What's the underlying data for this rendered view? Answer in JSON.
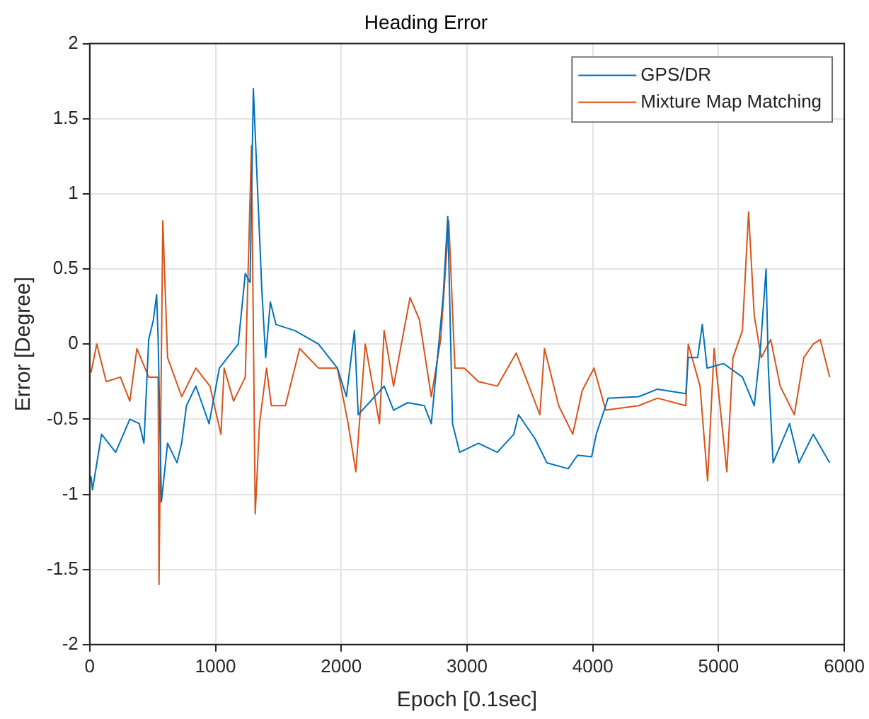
{
  "chart_data": {
    "type": "line",
    "title": "Heading Error",
    "xlabel": "Epoch [0.1sec]",
    "ylabel": "Error [Degree]",
    "xlim": [
      0,
      6000
    ],
    "xticks": [
      0,
      1000,
      2000,
      3000,
      4000,
      5000,
      6000
    ],
    "ylim": [
      -2,
      2
    ],
    "yticks": [
      -2,
      -1.5,
      -1,
      -0.5,
      0,
      0.5,
      1,
      1.5,
      2
    ],
    "grid": true,
    "legend": "top right",
    "marker": "none",
    "line_style": "solid",
    "series": [
      {
        "name": "GPS/DR",
        "color": "#0072bd",
        "x": [
          10,
          22,
          94,
          206,
          319,
          394,
          431,
          469,
          506,
          532,
          544,
          570,
          619,
          694,
          731,
          769,
          844,
          949,
          1031,
          1181,
          1237,
          1275,
          1301,
          1331,
          1369,
          1399,
          1436,
          1481,
          1631,
          1819,
          1969,
          2041,
          2105,
          2135,
          2266,
          2341,
          2416,
          2529,
          2660,
          2716,
          2810,
          2847,
          2885,
          2941,
          3091,
          3241,
          3372,
          3410,
          3541,
          3635,
          3804,
          3879,
          3991,
          4028,
          4103,
          4121,
          4365,
          4515,
          4740,
          4759,
          4834,
          4871,
          4909,
          5040,
          5190,
          5284,
          5333,
          5378,
          5396,
          5434,
          5565,
          5640,
          5753,
          5884
        ],
        "values": [
          -0.88,
          -0.97,
          -0.6,
          -0.72,
          -0.5,
          -0.53,
          -0.66,
          0.03,
          0.16,
          0.33,
          0.03,
          -1.05,
          -0.66,
          -0.79,
          -0.66,
          -0.41,
          -0.28,
          -0.53,
          -0.16,
          0,
          0.47,
          0.41,
          1.7,
          1.1,
          0.35,
          -0.09,
          0.28,
          0.13,
          0.09,
          0,
          -0.16,
          -0.35,
          0.09,
          -0.47,
          -0.35,
          -0.28,
          -0.44,
          -0.39,
          -0.41,
          -0.53,
          0.31,
          0.85,
          -0.53,
          -0.72,
          -0.66,
          -0.72,
          -0.6,
          -0.47,
          -0.63,
          -0.79,
          -0.83,
          -0.74,
          -0.75,
          -0.6,
          -0.41,
          -0.36,
          -0.35,
          -0.3,
          -0.33,
          -0.09,
          -0.09,
          0.13,
          -0.16,
          -0.13,
          -0.22,
          -0.41,
          -0.03,
          0.5,
          -0.16,
          -0.79,
          -0.53,
          -0.79,
          -0.6,
          -0.79
        ]
      },
      {
        "name": "Mixture Map Matching",
        "color": "#d95319",
        "x": [
          10,
          56,
          131,
          244,
          319,
          375,
          469,
          544,
          551,
          581,
          619,
          731,
          844,
          956,
          1043,
          1069,
          1144,
          1237,
          1286,
          1316,
          1350,
          1406,
          1444,
          1556,
          1669,
          1819,
          1969,
          2055,
          2116,
          2191,
          2304,
          2341,
          2416,
          2547,
          2622,
          2716,
          2791,
          2855,
          2904,
          2979,
          3091,
          3241,
          3391,
          3466,
          3579,
          3616,
          3729,
          3841,
          3916,
          4010,
          4103,
          4365,
          4515,
          4740,
          4759,
          4853,
          4913,
          4965,
          5066,
          5115,
          5190,
          5239,
          5284,
          5340,
          5415,
          5490,
          5603,
          5678,
          5753,
          5809,
          5884
        ],
        "values": [
          -0.19,
          0,
          -0.25,
          -0.22,
          -0.38,
          -0.03,
          -0.22,
          -0.22,
          -1.6,
          0.82,
          -0.09,
          -0.35,
          -0.16,
          -0.28,
          -0.6,
          -0.16,
          -0.38,
          -0.22,
          1.32,
          -1.13,
          -0.53,
          -0.16,
          -0.41,
          -0.41,
          -0.03,
          -0.16,
          -0.16,
          -0.53,
          -0.85,
          0,
          -0.53,
          0.09,
          -0.28,
          0.31,
          0.16,
          -0.35,
          0.03,
          0.82,
          -0.16,
          -0.16,
          -0.25,
          -0.28,
          -0.06,
          -0.22,
          -0.47,
          -0.03,
          -0.41,
          -0.6,
          -0.31,
          -0.16,
          -0.44,
          -0.41,
          -0.36,
          -0.41,
          0,
          -0.28,
          -0.91,
          -0.03,
          -0.85,
          -0.09,
          0.09,
          0.88,
          0.19,
          -0.09,
          0.03,
          -0.28,
          -0.47,
          -0.09,
          0,
          0.03,
          -0.22
        ]
      }
    ]
  }
}
